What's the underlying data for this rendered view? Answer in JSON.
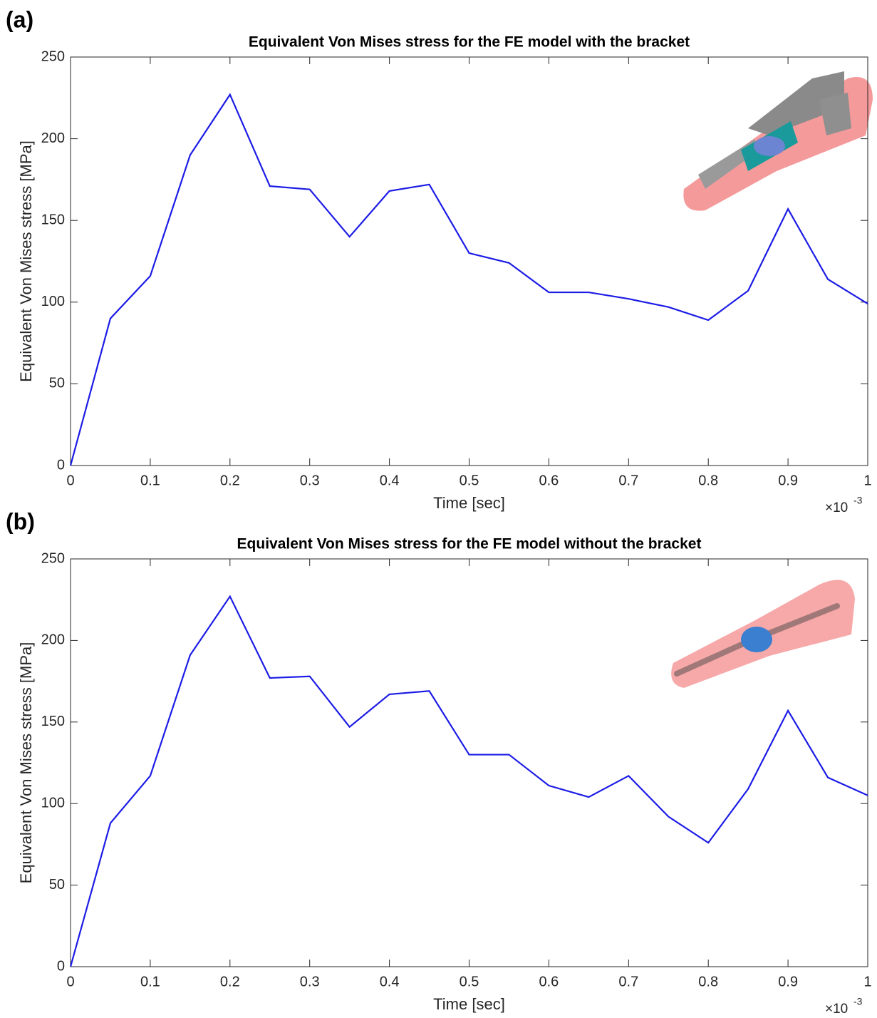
{
  "chart_data": [
    {
      "type": "line",
      "panel_label": "(a)",
      "title": "Equivalent Von Mises stress for the FE model with the bracket",
      "x_label": "Time [sec]",
      "y_label": "Equivalent Von Mises stress [MPa]",
      "x_multiplier": "×10",
      "x_exponent": "-3",
      "x": [
        0,
        0.05,
        0.1,
        0.15,
        0.2,
        0.25,
        0.3,
        0.35,
        0.4,
        0.45,
        0.5,
        0.55,
        0.6,
        0.65,
        0.7,
        0.75,
        0.8,
        0.85,
        0.9,
        0.95,
        1
      ],
      "series": [
        {
          "color": "#1c1ce6",
          "values": [
            0,
            90,
            116,
            190,
            227,
            171,
            169,
            140,
            168,
            172,
            130,
            124,
            106,
            106,
            102,
            97,
            89,
            107,
            157,
            114,
            99
          ]
        }
      ],
      "xlim": [
        0,
        1
      ],
      "xticks": [
        0,
        0.1,
        0.2,
        0.3,
        0.4,
        0.5,
        0.6,
        0.7,
        0.8,
        0.9,
        1
      ],
      "ylim": [
        0,
        250
      ],
      "yticks": [
        0,
        50,
        100,
        150,
        200,
        250
      ],
      "grid": false
    },
    {
      "type": "line",
      "panel_label": "(b)",
      "title": "Equivalent Von Mises stress for the FE model without the bracket",
      "x_label": "Time [sec]",
      "y_label": "Equivalent Von Mises stress [MPa]",
      "x_multiplier": "×10",
      "x_exponent": "-3",
      "x": [
        0,
        0.05,
        0.1,
        0.15,
        0.2,
        0.25,
        0.3,
        0.35,
        0.4,
        0.45,
        0.5,
        0.55,
        0.6,
        0.65,
        0.7,
        0.75,
        0.8,
        0.85,
        0.9,
        0.95,
        1
      ],
      "series": [
        {
          "color": "#1c1ce6",
          "values": [
            0,
            88,
            117,
            191,
            227,
            177,
            178,
            147,
            167,
            169,
            130,
            130,
            111,
            104,
            117,
            92,
            76,
            109,
            157,
            116,
            105
          ]
        }
      ],
      "xlim": [
        0,
        1
      ],
      "xticks": [
        0,
        0.1,
        0.2,
        0.3,
        0.4,
        0.5,
        0.6,
        0.7,
        0.8,
        0.9,
        1
      ],
      "ylim": [
        0,
        250
      ],
      "yticks": [
        0,
        50,
        100,
        150,
        200,
        250
      ],
      "grid": false
    }
  ]
}
